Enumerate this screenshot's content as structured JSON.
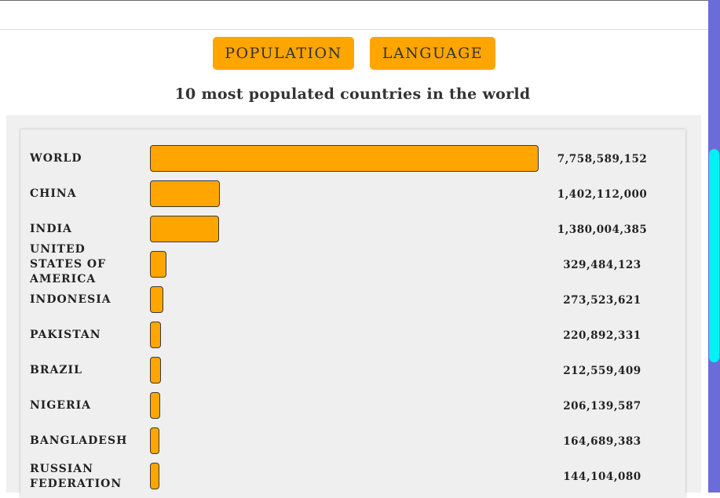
{
  "buttons": {
    "population": "POPULATION",
    "language": "LANGUAGE"
  },
  "subtitle": "10 most populated countries in the world",
  "colors": {
    "bar": "#ffa500",
    "button": "#ffa500",
    "scrollbar_track": "#6a6cd8",
    "scrollbar_thumb": "#00f2f2"
  },
  "chart_data": {
    "type": "bar",
    "orientation": "horizontal",
    "categories": [
      "WORLD",
      "CHINA",
      "INDIA",
      "UNITED STATES OF AMERICA",
      "INDONESIA",
      "PAKISTAN",
      "BRAZIL",
      "NIGERIA",
      "BANGLADESH",
      "RUSSIAN FEDERATION"
    ],
    "values": [
      7758589152,
      1402112000,
      1380004385,
      329484123,
      273523621,
      220892331,
      212559409,
      206139587,
      164689383,
      144104080
    ],
    "value_labels": [
      "7,758,589,152",
      "1,402,112,000",
      "1,380,004,385",
      "329,484,123",
      "273,523,621",
      "220,892,331",
      "212,559,409",
      "206,139,587",
      "164,689,383",
      "144,104,080"
    ],
    "title": "10 most populated countries in the world",
    "grid": false,
    "legend": "none"
  }
}
